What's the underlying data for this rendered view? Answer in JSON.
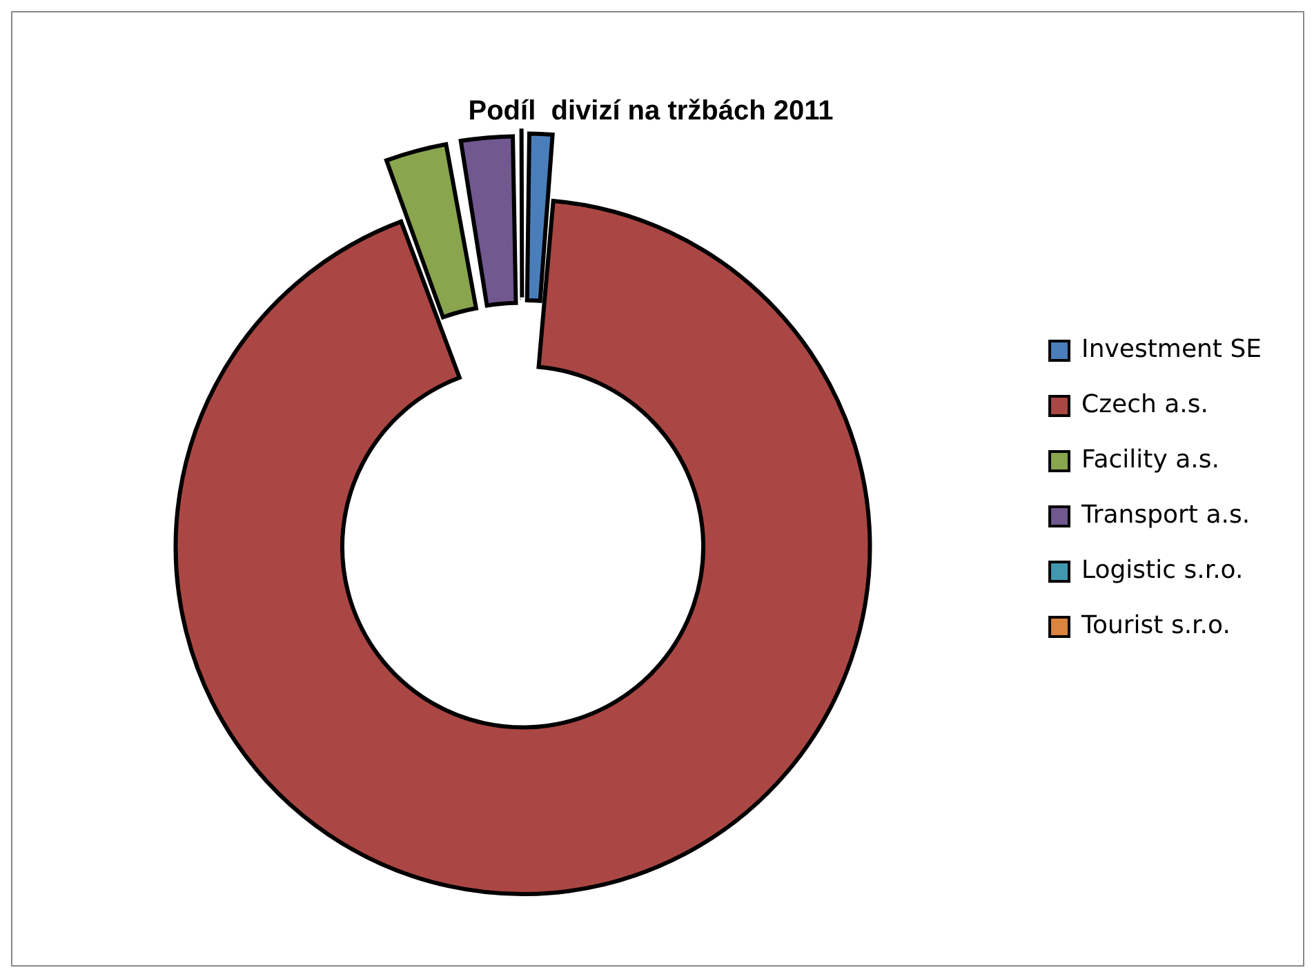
{
  "chart_data": {
    "type": "donut",
    "title": "Podíl  divizí na tržbách 2011",
    "categories": [
      "Investment SE",
      "Czech a.s.",
      "Facility a.s.",
      "Transport a.s.",
      "Logistic s.r.o.",
      "Tourist s.r.o."
    ],
    "values": [
      1.4,
      92.9,
      3.0,
      2.6,
      0.1,
      0.0
    ],
    "colors": [
      "#4a7ebb",
      "#aa4744",
      "#89a54e",
      "#71588f",
      "#4198af",
      "#db843d"
    ],
    "legend": "right"
  }
}
